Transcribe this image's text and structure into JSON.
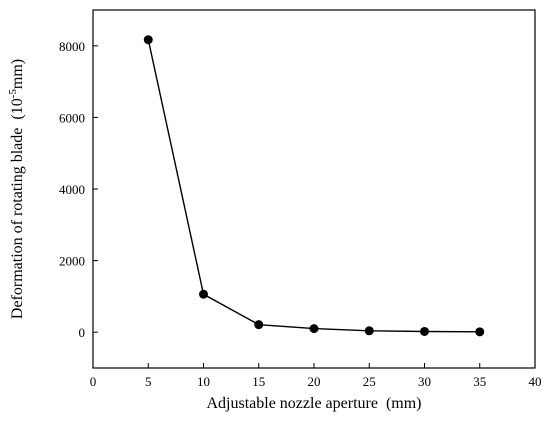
{
  "chart_data": {
    "type": "line",
    "title": "",
    "xlabel": "Adjustable nozzle aperture  (mm)",
    "ylabel_main": "Deformation of rotating blade  (10",
    "ylabel_sup": "-5",
    "ylabel_tail": "mm)",
    "xlim": [
      0,
      40
    ],
    "ylim": [
      -1000,
      9000
    ],
    "x_ticks": [
      0,
      5,
      10,
      15,
      20,
      25,
      30,
      35,
      40
    ],
    "y_ticks": [
      0,
      2000,
      4000,
      6000,
      8000
    ],
    "x_tick_labels": [
      "0",
      "5",
      "10",
      "15",
      "20",
      "25",
      "30",
      "35",
      "40"
    ],
    "y_tick_labels": [
      "0",
      "2000",
      "4000",
      "6000",
      "8000"
    ],
    "grid": false,
    "series": [
      {
        "x": [
          5,
          10,
          15,
          20,
          25,
          30,
          35
        ],
        "y": [
          8170,
          1060,
          210,
          100,
          40,
          20,
          10
        ]
      }
    ],
    "colors": {
      "line": "#000000",
      "marker": "#000000",
      "axis": "#000000"
    }
  }
}
